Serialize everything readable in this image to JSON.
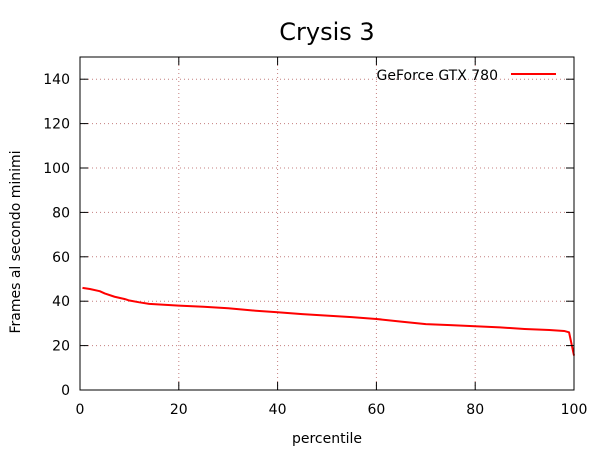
{
  "chart_data": {
    "type": "line",
    "title": "Crysis 3",
    "xlabel": "percentile",
    "ylabel": "Frames al secondo minimi",
    "xlim": [
      0,
      100
    ],
    "ylim": [
      0,
      150
    ],
    "xticks": [
      0,
      20,
      40,
      60,
      80,
      100
    ],
    "yticks": [
      0,
      20,
      40,
      60,
      80,
      100,
      120,
      140
    ],
    "grid": true,
    "legend_position": "top-right",
    "series": [
      {
        "name": "GeForce GTX 780",
        "color": "#ff0000",
        "x": [
          0.5,
          2,
          4,
          5,
          7,
          9,
          10,
          12,
          14,
          20,
          25,
          30,
          35,
          40,
          45,
          50,
          55,
          60,
          65,
          70,
          75,
          80,
          85,
          90,
          95,
          98,
          99,
          100
        ],
        "y": [
          46,
          45.5,
          44.5,
          43.5,
          42,
          41,
          40.3,
          39.5,
          38.8,
          38,
          37.5,
          36.8,
          35.8,
          35,
          34.2,
          33.5,
          32.8,
          32,
          30.8,
          29.7,
          29.2,
          28.7,
          28.2,
          27.5,
          27,
          26.6,
          26,
          15.5
        ]
      }
    ]
  }
}
